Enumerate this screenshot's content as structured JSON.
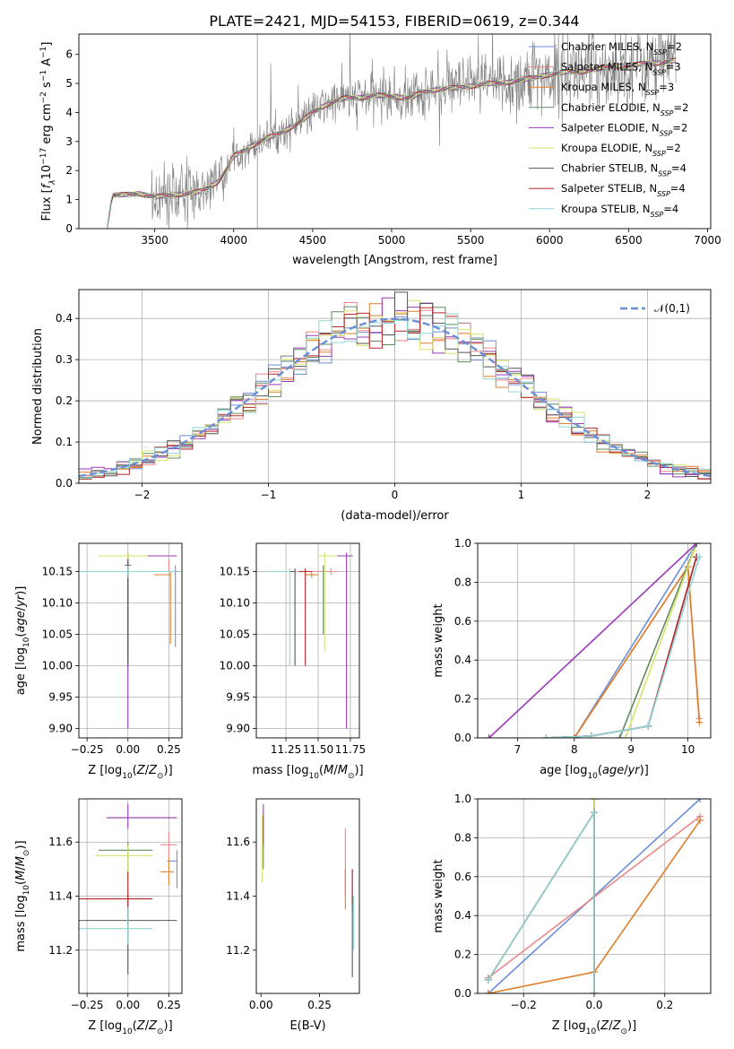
{
  "title": "PLATE=2421, MJD=54153, FIBERID=0619, z=0.344",
  "colors": {
    "Chabrier MILES": "#6a8fd6",
    "Salpeter MILES": "#e8888a",
    "Kroupa MILES": "#e07f2a",
    "Chabrier ELODIE": "#5f8a60",
    "Salpeter ELODIE": "#9a3ab5",
    "Kroupa ELODIE": "#d7e36a",
    "Chabrier STELIB": "#555555",
    "Salpeter STELIB": "#b8282a",
    "Kroupa STELIB": "#8fd6d6",
    "data": "#7f7f7f",
    "normal": "#6a8fd6"
  },
  "legend_spectrum": [
    {
      "prefix": "Chabrier MILES, N",
      "sub": "SSP",
      "suffix": "=2"
    },
    {
      "prefix": "Salpeter MILES, N",
      "sub": "SSP",
      "suffix": "=3"
    },
    {
      "prefix": "Kroupa MILES, N",
      "sub": "SSP",
      "suffix": "=3"
    },
    {
      "prefix": "Chabrier ELODIE, N",
      "sub": "SSP",
      "suffix": "=2"
    },
    {
      "prefix": "Salpeter ELODIE, N",
      "sub": "SSP",
      "suffix": "=2"
    },
    {
      "prefix": "Kroupa ELODIE, N",
      "sub": "SSP",
      "suffix": "=2"
    },
    {
      "prefix": "Chabrier STELIB, N",
      "sub": "SSP",
      "suffix": "=4"
    },
    {
      "prefix": "Salpeter STELIB, N",
      "sub": "SSP",
      "suffix": "=4"
    },
    {
      "prefix": "Kroupa STELIB, N",
      "sub": "SSP",
      "suffix": "=4"
    }
  ],
  "chart_data": [
    {
      "id": "spectrum",
      "type": "line",
      "xlabel": "wavelength [Angstrom, rest frame]",
      "ylabel": "Flux [f_λ 10^-17 erg cm^-2 s^-1 A^-1]",
      "xlim": [
        3020,
        7020
      ],
      "ylim": [
        0,
        6.7
      ],
      "xticks": [
        3500,
        4000,
        4500,
        5000,
        5500,
        6000,
        6500,
        7000
      ],
      "yticks": [
        0,
        1,
        2,
        3,
        4,
        5,
        6
      ],
      "grid": false,
      "legend": "top-right",
      "continuum": {
        "x": [
          3200,
          3230,
          3400,
          3500,
          3600,
          3700,
          3800,
          3900,
          3950,
          4000,
          4100,
          4200,
          4300,
          4400,
          4500,
          4600,
          4700,
          4800,
          4900,
          5000,
          5100,
          5200,
          5300,
          5400,
          5500,
          5600,
          5700,
          5800,
          5900,
          6000,
          6100,
          6200,
          6300,
          6400,
          6500,
          6600,
          6700,
          6800
        ],
        "y": [
          0.0,
          1.15,
          1.2,
          1.1,
          1.15,
          1.2,
          1.3,
          1.6,
          2.0,
          2.5,
          2.8,
          3.1,
          3.3,
          3.6,
          4.0,
          4.3,
          4.5,
          4.5,
          4.6,
          4.55,
          4.5,
          4.7,
          4.8,
          4.85,
          4.9,
          5.0,
          5.0,
          5.1,
          5.2,
          5.3,
          5.4,
          5.4,
          5.5,
          5.6,
          5.6,
          5.7,
          5.7,
          5.8
        ]
      }
    },
    {
      "id": "residuals",
      "type": "histogram",
      "xlabel": "(data-model)/error",
      "ylabel": "Normed distribution",
      "xlim": [
        -2.5,
        2.5
      ],
      "ylim": [
        0,
        0.47
      ],
      "xticks": [
        -2,
        -1,
        0,
        1,
        2
      ],
      "yticks": [
        0.0,
        0.1,
        0.2,
        0.3,
        0.4
      ],
      "grid": true,
      "legend": "top-right",
      "normal_label": "𝒩(0,1)"
    },
    {
      "id": "age-vs-Z",
      "type": "errorbar",
      "xlabel": "Z [log10(Z/Z⊙)]",
      "ylabel": "age [log10(age/yr)]",
      "xlim": [
        -0.3,
        0.33
      ],
      "ylim": [
        9.885,
        10.195
      ],
      "xticks": [
        -0.25,
        0.0,
        0.25
      ],
      "yticks": [
        9.9,
        9.95,
        10.0,
        10.05,
        10.1,
        10.15
      ],
      "grid": true,
      "points": [
        {
          "model": "Chabrier MILES",
          "x": 0.29,
          "y": 10.15,
          "xerr": [
            0.09,
            0.02
          ],
          "yerr": [
            0.12,
            0.01
          ]
        },
        {
          "model": "Salpeter MILES",
          "x": 0.25,
          "y": 10.15,
          "xerr": [
            0.2,
            0.03
          ],
          "yerr": [
            0.0,
            0.02
          ]
        },
        {
          "model": "Kroupa MILES",
          "x": 0.26,
          "y": 10.145,
          "xerr": [
            0.1,
            0.0
          ],
          "yerr": [
            0.11,
            0.005
          ]
        },
        {
          "model": "Chabrier ELODIE",
          "x": 0.0,
          "y": 10.16,
          "xerr": [
            0.02,
            0.02
          ],
          "yerr": [
            0.15,
            0.005
          ]
        },
        {
          "model": "Salpeter ELODIE",
          "x": 0.0,
          "y": 10.175,
          "xerr": [
            0.0,
            0.3
          ],
          "yerr": [
            0.275,
            0.005
          ]
        },
        {
          "model": "Kroupa ELODIE",
          "x": 0.0,
          "y": 10.175,
          "xerr": [
            0.18,
            0.12
          ],
          "yerr": [
            0.005,
            0.005
          ]
        },
        {
          "model": "Chabrier STELIB",
          "x": 0.0,
          "y": 10.15,
          "xerr": [
            0.3,
            0.3
          ],
          "yerr": [
            0.15,
            0.02
          ]
        },
        {
          "model": "Salpeter STELIB",
          "x": 0.0,
          "y": 10.15,
          "xerr": [
            0.3,
            0.3
          ],
          "yerr": [
            0.01,
            0.01
          ]
        },
        {
          "model": "Kroupa STELIB",
          "x": 0.0,
          "y": 10.15,
          "xerr": [
            0.3,
            0.3
          ],
          "yerr": [
            0.01,
            0.01
          ]
        }
      ]
    },
    {
      "id": "age-vs-mass",
      "type": "errorbar",
      "xlabel": "mass [log10(M/M⊙)]",
      "ylabel": "",
      "xlim": [
        11.02,
        11.82
      ],
      "ylim": [
        9.885,
        10.195
      ],
      "xticks": [
        11.25,
        11.5,
        11.75
      ],
      "yticks": [
        9.9,
        9.95,
        10.0,
        10.05,
        10.1,
        10.15
      ],
      "grid": true,
      "points": [
        {
          "model": "Chabrier MILES",
          "x": 11.45,
          "y": 10.15,
          "xerr": [
            0.1,
            0.1
          ],
          "yerr": [
            0.0,
            0.0
          ]
        },
        {
          "model": "Salpeter MILES",
          "x": 11.6,
          "y": 10.15,
          "xerr": [
            0.2,
            0.05
          ],
          "yerr": [
            0.005,
            0.005
          ]
        },
        {
          "model": "Kroupa MILES",
          "x": 11.45,
          "y": 10.145,
          "xerr": [
            0.05,
            0.05
          ],
          "yerr": [
            0.005,
            0.005
          ]
        },
        {
          "model": "Chabrier ELODIE",
          "x": 11.54,
          "y": 10.15,
          "xerr": [
            0.0,
            0.0
          ],
          "yerr": [
            0.1,
            0.01
          ]
        },
        {
          "model": "Salpeter ELODIE",
          "x": 11.72,
          "y": 10.175,
          "xerr": [
            0.1,
            0.05
          ],
          "yerr": [
            0.275,
            0.005
          ]
        },
        {
          "model": "Kroupa ELODIE",
          "x": 11.55,
          "y": 10.175,
          "xerr": [
            0.05,
            0.1
          ],
          "yerr": [
            0.15,
            0.005
          ]
        },
        {
          "model": "Chabrier STELIB",
          "x": 11.32,
          "y": 10.15,
          "xerr": [
            0.24,
            0.0
          ],
          "yerr": [
            0.15,
            0.005
          ]
        },
        {
          "model": "Salpeter STELIB",
          "x": 11.4,
          "y": 10.15,
          "xerr": [
            0.05,
            0.05
          ],
          "yerr": [
            0.15,
            0.005
          ]
        },
        {
          "model": "Kroupa STELIB",
          "x": 11.28,
          "y": 10.15,
          "xerr": [
            0.2,
            0.0
          ],
          "yerr": [
            0.15,
            0.005
          ]
        }
      ]
    },
    {
      "id": "massweight-vs-age",
      "type": "line",
      "xlabel": "age [log10(age/yr)]",
      "ylabel": "mass weight",
      "xlim": [
        6.3,
        10.4
      ],
      "ylim": [
        0.0,
        1.0
      ],
      "xticks": [
        7,
        8,
        9,
        10
      ],
      "yticks": [
        0.0,
        0.2,
        0.4,
        0.6,
        0.8,
        1.0
      ],
      "grid": true,
      "series": [
        {
          "model": "Chabrier MILES",
          "x": [
            8.0,
            10.15
          ],
          "y": [
            0.0,
            1.0
          ]
        },
        {
          "model": "Salpeter MILES",
          "x": [
            8.0,
            10.0,
            10.2
          ],
          "y": [
            0.0,
            0.88,
            0.1
          ]
        },
        {
          "model": "Kroupa MILES",
          "x": [
            8.0,
            10.0,
            10.2
          ],
          "y": [
            0.0,
            0.88,
            0.08
          ]
        },
        {
          "model": "Chabrier ELODIE",
          "x": [
            8.8,
            10.15
          ],
          "y": [
            0.0,
            1.0
          ]
        },
        {
          "model": "Salpeter ELODIE",
          "x": [
            6.5,
            10.15
          ],
          "y": [
            0.0,
            1.0
          ]
        },
        {
          "model": "Kroupa ELODIE",
          "x": [
            8.9,
            10.1
          ],
          "y": [
            0.0,
            0.96
          ]
        },
        {
          "model": "Chabrier STELIB",
          "x": [
            7.5,
            8.3,
            9.3,
            10.15
          ],
          "y": [
            0.0,
            0.01,
            0.06,
            0.93
          ]
        },
        {
          "model": "Salpeter STELIB",
          "x": [
            7.5,
            8.3,
            9.3,
            10.15
          ],
          "y": [
            0.0,
            0.01,
            0.06,
            0.93
          ]
        },
        {
          "model": "Kroupa STELIB",
          "x": [
            7.5,
            8.3,
            9.3,
            10.2
          ],
          "y": [
            0.0,
            0.01,
            0.06,
            0.93
          ]
        }
      ]
    },
    {
      "id": "mass-vs-Z",
      "type": "errorbar",
      "xlabel": "Z [log10(Z/Z⊙)]",
      "ylabel": "mass [log10(M/M⊙)]",
      "xlim": [
        -0.3,
        0.33
      ],
      "ylim": [
        11.04,
        11.76
      ],
      "xticks": [
        -0.25,
        0.0,
        0.25
      ],
      "yticks": [
        11.2,
        11.4,
        11.6
      ],
      "grid": true,
      "points": [
        {
          "model": "Chabrier MILES",
          "x": 0.3,
          "y": 11.53,
          "xerr": [
            0.06,
            0.0
          ],
          "yerr": [
            0.1,
            0.04
          ]
        },
        {
          "model": "Salpeter MILES",
          "x": 0.25,
          "y": 11.59,
          "xerr": [
            0.05,
            0.05
          ],
          "yerr": [
            0.05,
            0.05
          ]
        },
        {
          "model": "Kroupa MILES",
          "x": 0.25,
          "y": 11.49,
          "xerr": [
            0.05,
            0.03
          ],
          "yerr": [
            0.05,
            0.05
          ]
        },
        {
          "model": "Chabrier ELODIE",
          "x": 0.0,
          "y": 11.57,
          "xerr": [
            0.18,
            0.15
          ],
          "yerr": [
            0.1,
            0.03
          ]
        },
        {
          "model": "Salpeter ELODIE",
          "x": 0.0,
          "y": 11.69,
          "xerr": [
            0.13,
            0.3
          ],
          "yerr": [
            0.04,
            0.05
          ]
        },
        {
          "model": "Kroupa ELODIE",
          "x": 0.0,
          "y": 11.55,
          "xerr": [
            0.2,
            0.15
          ],
          "yerr": [
            0.1,
            0.04
          ]
        },
        {
          "model": "Chabrier STELIB",
          "x": 0.0,
          "y": 11.31,
          "xerr": [
            0.3,
            0.3
          ],
          "yerr": [
            0.2,
            0.1
          ]
        },
        {
          "model": "Salpeter STELIB",
          "x": 0.0,
          "y": 11.39,
          "xerr": [
            0.3,
            0.15
          ],
          "yerr": [
            0.1,
            0.1
          ]
        },
        {
          "model": "Kroupa STELIB",
          "x": 0.0,
          "y": 11.28,
          "xerr": [
            0.3,
            0.15
          ],
          "yerr": [
            0.06,
            0.08
          ]
        }
      ]
    },
    {
      "id": "mass-vs-ebv",
      "type": "errorbar",
      "xlabel": "E(B-V)",
      "ylabel": "",
      "xlim": [
        -0.02,
        0.42
      ],
      "ylim": [
        11.04,
        11.76
      ],
      "xticks": [
        0.0,
        0.25
      ],
      "yticks": [
        11.2,
        11.4,
        11.6
      ],
      "grid": false,
      "points": [
        {
          "model": "Chabrier MILES",
          "x": 0.39,
          "y": 11.45,
          "xerr": [
            0.0,
            0.0
          ],
          "yerr": [
            0.1,
            0.05
          ]
        },
        {
          "model": "Salpeter MILES",
          "x": 0.36,
          "y": 11.55,
          "xerr": [
            0.0,
            0.0
          ],
          "yerr": [
            0.15,
            0.1
          ]
        },
        {
          "model": "Kroupa MILES",
          "x": 0.36,
          "y": 11.45,
          "xerr": [
            0.0,
            0.0
          ],
          "yerr": [
            0.1,
            0.05
          ]
        },
        {
          "model": "Chabrier ELODIE",
          "x": 0.01,
          "y": 11.6,
          "xerr": [
            0.0,
            0.0
          ],
          "yerr": [
            0.1,
            0.1
          ]
        },
        {
          "model": "Salpeter ELODIE",
          "x": 0.01,
          "y": 11.69,
          "xerr": [
            0.0,
            0.0
          ],
          "yerr": [
            0.1,
            0.05
          ]
        },
        {
          "model": "Kroupa ELODIE",
          "x": 0.005,
          "y": 11.6,
          "xerr": [
            0.0,
            0.0
          ],
          "yerr": [
            0.15,
            0.1
          ]
        },
        {
          "model": "Chabrier STELIB",
          "x": 0.39,
          "y": 11.3,
          "xerr": [
            0.0,
            0.0
          ],
          "yerr": [
            0.2,
            0.1
          ]
        },
        {
          "model": "Salpeter STELIB",
          "x": 0.39,
          "y": 11.42,
          "xerr": [
            0.0,
            0.0
          ],
          "yerr": [
            0.05,
            0.08
          ]
        },
        {
          "model": "Kroupa STELIB",
          "x": 0.395,
          "y": 11.3,
          "xerr": [
            0.0,
            0.0
          ],
          "yerr": [
            0.1,
            0.1
          ]
        }
      ]
    },
    {
      "id": "massweight-vs-Z",
      "type": "line",
      "xlabel": "Z [log10(Z/Z⊙)]",
      "ylabel": "mass weight",
      "xlim": [
        -0.33,
        0.33
      ],
      "ylim": [
        0.0,
        1.0
      ],
      "xticks": [
        -0.2,
        0.0,
        0.2
      ],
      "yticks": [
        0.0,
        0.2,
        0.4,
        0.6,
        0.8,
        1.0
      ],
      "grid": true,
      "series": [
        {
          "model": "Chabrier MILES",
          "x": [
            -0.3,
            0.3
          ],
          "y": [
            0.0,
            1.0
          ]
        },
        {
          "model": "Salpeter MILES",
          "x": [
            -0.3,
            0.3
          ],
          "y": [
            0.08,
            0.91
          ]
        },
        {
          "model": "Kroupa MILES",
          "x": [
            -0.3,
            0.0,
            0.3
          ],
          "y": [
            0.0,
            0.11,
            0.89
          ]
        },
        {
          "model": "Chabrier ELODIE",
          "x": [
            0.0,
            0.0
          ],
          "y": [
            0.0,
            1.0
          ]
        },
        {
          "model": "Salpeter ELODIE",
          "x": [
            0.0,
            0.0
          ],
          "y": [
            0.0,
            1.0
          ]
        },
        {
          "model": "Kroupa ELODIE",
          "x": [
            0.0,
            0.0
          ],
          "y": [
            0.0,
            1.0
          ]
        },
        {
          "model": "Chabrier STELIB",
          "x": [
            -0.3,
            0.0,
            0.0
          ],
          "y": [
            0.07,
            0.93,
            0.0
          ]
        },
        {
          "model": "Salpeter STELIB",
          "x": [
            -0.3,
            0.0,
            0.0
          ],
          "y": [
            0.07,
            0.93,
            0.0
          ]
        },
        {
          "model": "Kroupa STELIB",
          "x": [
            -0.3,
            0.0,
            0.0
          ],
          "y": [
            0.07,
            0.93,
            0.0
          ]
        }
      ]
    }
  ]
}
